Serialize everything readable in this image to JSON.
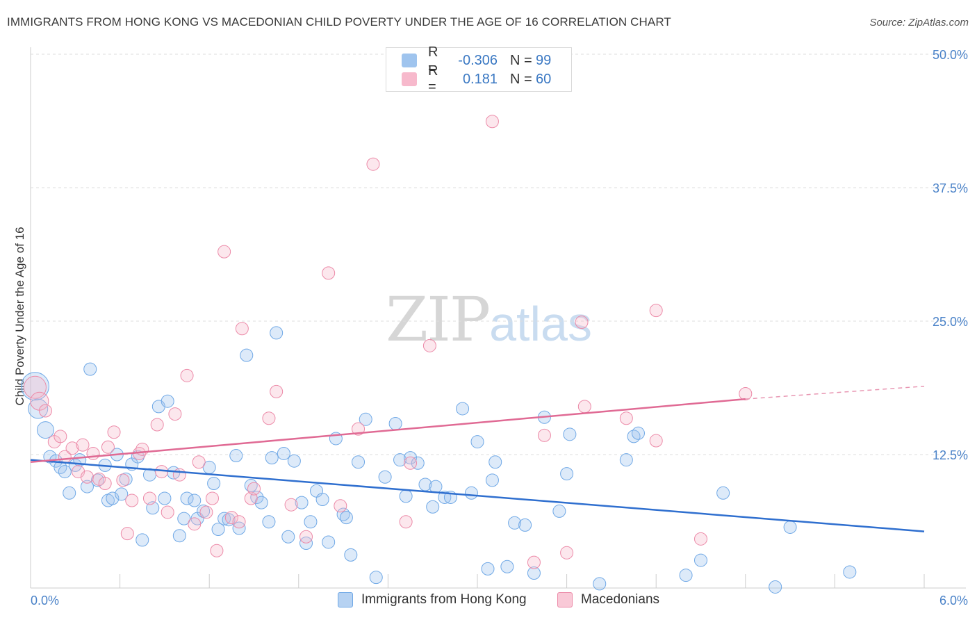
{
  "header": {
    "title": "IMMIGRANTS FROM HONG KONG VS MACEDONIAN CHILD POVERTY UNDER THE AGE OF 16 CORRELATION CHART",
    "source": "Source: ZipAtlas.com"
  },
  "watermark": {
    "zip": "ZIP",
    "atlas": "atlas"
  },
  "legend": {
    "rows": [
      {
        "r_label": "R =",
        "r_value": "-0.306",
        "n_label": "N =",
        "n_value": "99",
        "color": "#9fc4ee"
      },
      {
        "r_label": "R =",
        "r_value": "0.181",
        "n_label": "N =",
        "n_value": "60",
        "color": "#f7b9cc"
      }
    ]
  },
  "bottom_legend": {
    "items": [
      {
        "label": "Immigrants from Hong Kong",
        "color": "#b6d2f2"
      },
      {
        "label": "Macedonians",
        "color": "#f9c9d7"
      }
    ]
  },
  "chart_data": {
    "type": "scatter",
    "title": "IMMIGRANTS FROM HONG KONG VS MACEDONIAN CHILD POVERTY UNDER THE AGE OF 16 CORRELATION CHART",
    "xlabel": "",
    "ylabel": "Child Poverty Under the Age of 16",
    "xlim": [
      0,
      6
    ],
    "ylim": [
      0,
      50
    ],
    "x_tick_labels": [
      "0.0%",
      "6.0%"
    ],
    "y_ticks": [
      12.5,
      25,
      37.5,
      50
    ],
    "y_tick_labels": [
      "12.5%",
      "25.0%",
      "37.5%",
      "50.0%"
    ],
    "grid": true,
    "legend_position": "top-center",
    "series": [
      {
        "name": "Immigrants from Hong Kong",
        "color": "#6fa8e6",
        "trend": {
          "x": [
            0,
            6
          ],
          "y": [
            12.0,
            5.3
          ]
        },
        "points": [
          [
            0.03,
            18.9
          ],
          [
            0.05,
            16.8
          ],
          [
            0.1,
            14.8
          ],
          [
            0.13,
            12.3
          ],
          [
            0.17,
            11.9
          ],
          [
            0.2,
            11.3
          ],
          [
            0.23,
            10.9
          ],
          [
            0.26,
            8.9
          ],
          [
            0.3,
            11.5
          ],
          [
            0.33,
            12.0
          ],
          [
            0.38,
            9.5
          ],
          [
            0.4,
            20.5
          ],
          [
            0.45,
            10.1
          ],
          [
            0.5,
            11.5
          ],
          [
            0.52,
            8.2
          ],
          [
            0.55,
            8.4
          ],
          [
            0.58,
            12.5
          ],
          [
            0.61,
            8.8
          ],
          [
            0.64,
            10.2
          ],
          [
            0.68,
            11.6
          ],
          [
            0.72,
            12.3
          ],
          [
            0.75,
            4.5
          ],
          [
            0.8,
            10.6
          ],
          [
            0.82,
            7.5
          ],
          [
            0.86,
            17.0
          ],
          [
            0.9,
            8.4
          ],
          [
            0.92,
            17.5
          ],
          [
            0.96,
            10.8
          ],
          [
            1.0,
            4.9
          ],
          [
            1.03,
            6.5
          ],
          [
            1.05,
            8.4
          ],
          [
            1.1,
            8.2
          ],
          [
            1.12,
            6.5
          ],
          [
            1.16,
            7.2
          ],
          [
            1.2,
            11.3
          ],
          [
            1.23,
            9.8
          ],
          [
            1.26,
            5.5
          ],
          [
            1.3,
            6.5
          ],
          [
            1.33,
            6.4
          ],
          [
            1.38,
            12.4
          ],
          [
            1.4,
            5.6
          ],
          [
            1.45,
            21.8
          ],
          [
            1.48,
            9.6
          ],
          [
            1.52,
            8.5
          ],
          [
            1.55,
            8.0
          ],
          [
            1.6,
            6.2
          ],
          [
            1.62,
            12.2
          ],
          [
            1.65,
            23.9
          ],
          [
            1.7,
            12.6
          ],
          [
            1.73,
            4.8
          ],
          [
            1.77,
            11.9
          ],
          [
            1.82,
            8.0
          ],
          [
            1.85,
            4.2
          ],
          [
            1.88,
            6.2
          ],
          [
            1.92,
            9.1
          ],
          [
            1.96,
            8.3
          ],
          [
            2.0,
            4.3
          ],
          [
            2.05,
            14.0
          ],
          [
            2.1,
            6.9
          ],
          [
            2.12,
            6.6
          ],
          [
            2.2,
            11.8
          ],
          [
            2.25,
            15.8
          ],
          [
            2.32,
            1.0
          ],
          [
            2.38,
            10.4
          ],
          [
            2.45,
            15.4
          ],
          [
            2.48,
            12.0
          ],
          [
            2.52,
            8.6
          ],
          [
            2.55,
            12.2
          ],
          [
            2.6,
            11.7
          ],
          [
            2.65,
            9.7
          ],
          [
            2.7,
            7.6
          ],
          [
            2.72,
            9.5
          ],
          [
            2.78,
            8.5
          ],
          [
            2.82,
            8.5
          ],
          [
            2.9,
            16.8
          ],
          [
            2.96,
            8.9
          ],
          [
            3.0,
            13.7
          ],
          [
            3.07,
            1.8
          ],
          [
            3.1,
            10.1
          ],
          [
            3.12,
            11.8
          ],
          [
            3.2,
            2.0
          ],
          [
            3.25,
            6.1
          ],
          [
            3.32,
            5.9
          ],
          [
            3.38,
            1.4
          ],
          [
            3.45,
            16.0
          ],
          [
            3.55,
            7.2
          ],
          [
            3.6,
            10.7
          ],
          [
            3.62,
            14.4
          ],
          [
            4.0,
            12.0
          ],
          [
            4.05,
            14.2
          ],
          [
            4.08,
            14.5
          ],
          [
            4.5,
            2.6
          ],
          [
            4.4,
            1.2
          ],
          [
            4.65,
            8.9
          ],
          [
            5.0,
            0.1
          ],
          [
            5.1,
            5.7
          ],
          [
            5.5,
            1.5
          ],
          [
            3.82,
            0.4
          ],
          [
            2.15,
            3.1
          ]
        ]
      },
      {
        "name": "Macedonians",
        "color": "#ec8aa8",
        "trend": {
          "x": [
            0,
            4.8
          ],
          "y": [
            11.8,
            17.7
          ]
        },
        "trend_dashed": {
          "x": [
            4.8,
            6
          ],
          "y": [
            17.7,
            18.9
          ]
        },
        "points": [
          [
            0.03,
            18.8
          ],
          [
            0.06,
            17.5
          ],
          [
            0.1,
            16.6
          ],
          [
            0.16,
            13.7
          ],
          [
            0.2,
            14.2
          ],
          [
            0.23,
            12.3
          ],
          [
            0.28,
            13.1
          ],
          [
            0.32,
            10.9
          ],
          [
            0.35,
            13.4
          ],
          [
            0.38,
            10.4
          ],
          [
            0.42,
            12.6
          ],
          [
            0.46,
            10.2
          ],
          [
            0.5,
            9.8
          ],
          [
            0.52,
            13.2
          ],
          [
            0.56,
            14.6
          ],
          [
            0.62,
            10.1
          ],
          [
            0.65,
            5.1
          ],
          [
            0.68,
            8.2
          ],
          [
            0.73,
            12.6
          ],
          [
            0.75,
            13.0
          ],
          [
            0.8,
            8.4
          ],
          [
            0.85,
            15.3
          ],
          [
            0.88,
            10.9
          ],
          [
            0.92,
            7.1
          ],
          [
            0.97,
            16.3
          ],
          [
            1.0,
            10.6
          ],
          [
            1.05,
            19.9
          ],
          [
            1.1,
            6.0
          ],
          [
            1.13,
            11.8
          ],
          [
            1.18,
            7.1
          ],
          [
            1.22,
            8.4
          ],
          [
            1.25,
            3.5
          ],
          [
            1.3,
            31.5
          ],
          [
            1.35,
            6.6
          ],
          [
            1.4,
            6.2
          ],
          [
            1.42,
            24.3
          ],
          [
            1.48,
            8.4
          ],
          [
            1.5,
            9.3
          ],
          [
            1.6,
            15.9
          ],
          [
            1.65,
            18.4
          ],
          [
            1.75,
            7.8
          ],
          [
            1.85,
            4.8
          ],
          [
            2.0,
            29.5
          ],
          [
            2.08,
            7.7
          ],
          [
            2.2,
            14.9
          ],
          [
            2.3,
            39.7
          ],
          [
            2.52,
            6.2
          ],
          [
            2.55,
            11.7
          ],
          [
            2.68,
            22.7
          ],
          [
            3.1,
            43.7
          ],
          [
            3.38,
            2.4
          ],
          [
            3.45,
            14.3
          ],
          [
            3.6,
            3.3
          ],
          [
            3.7,
            24.9
          ],
          [
            3.72,
            17.0
          ],
          [
            4.0,
            15.9
          ],
          [
            4.2,
            26.0
          ],
          [
            4.2,
            13.8
          ],
          [
            4.5,
            4.6
          ],
          [
            4.8,
            18.2
          ]
        ]
      }
    ]
  }
}
